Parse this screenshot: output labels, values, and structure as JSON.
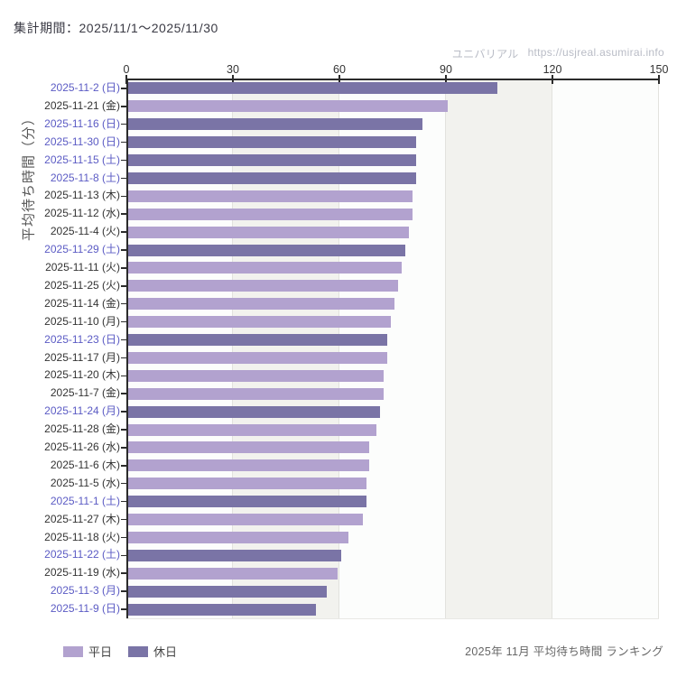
{
  "header": {
    "period_label": "集計期間：2025/11/1～2025/11/30"
  },
  "watermark": {
    "site_name": "ユニバリアル",
    "site_url": "https://usjreal.asumirai.info"
  },
  "footer": {
    "caption": "2025年 11月 平均待ち時間 ランキング"
  },
  "legend": {
    "items": [
      {
        "label": "平日",
        "type": "weekday"
      },
      {
        "label": "休日",
        "type": "holiday"
      }
    ]
  },
  "chart_data": {
    "type": "bar",
    "orientation": "horizontal",
    "title": "2025年 11月 平均待ち時間 ランキング",
    "ylabel": "平均待ち時間（分）",
    "xlabel": "",
    "xlim": [
      0,
      150
    ],
    "x_ticks": [
      0,
      30,
      60,
      90,
      120,
      150
    ],
    "grid": true,
    "legend_position": "bottom-left",
    "categories": [
      "2025-11-2 (日)",
      "2025-11-21 (金)",
      "2025-11-16 (日)",
      "2025-11-30 (日)",
      "2025-11-15 (土)",
      "2025-11-8 (土)",
      "2025-11-13 (木)",
      "2025-11-12 (水)",
      "2025-11-4 (火)",
      "2025-11-29 (土)",
      "2025-11-11 (火)",
      "2025-11-25 (火)",
      "2025-11-14 (金)",
      "2025-11-10 (月)",
      "2025-11-23 (日)",
      "2025-11-17 (月)",
      "2025-11-20 (木)",
      "2025-11-7 (金)",
      "2025-11-24 (月)",
      "2025-11-28 (金)",
      "2025-11-26 (水)",
      "2025-11-6 (木)",
      "2025-11-5 (水)",
      "2025-11-1 (土)",
      "2025-11-27 (木)",
      "2025-11-18 (火)",
      "2025-11-22 (土)",
      "2025-11-19 (水)",
      "2025-11-3 (月)",
      "2025-11-9 (日)"
    ],
    "values": [
      104,
      90,
      83,
      81,
      81,
      81,
      80,
      80,
      79,
      78,
      77,
      76,
      75,
      74,
      73,
      73,
      72,
      72,
      71,
      70,
      68,
      68,
      67,
      67,
      66,
      62,
      60,
      59,
      56,
      53
    ],
    "day_types": [
      "holiday",
      "weekday",
      "holiday",
      "holiday",
      "holiday",
      "holiday",
      "weekday",
      "weekday",
      "weekday",
      "holiday",
      "weekday",
      "weekday",
      "weekday",
      "weekday",
      "holiday",
      "weekday",
      "weekday",
      "weekday",
      "holiday",
      "weekday",
      "weekday",
      "weekday",
      "weekday",
      "holiday",
      "weekday",
      "weekday",
      "holiday",
      "weekday",
      "holiday",
      "holiday"
    ],
    "colors": {
      "weekday_bar": "#b2a2cf",
      "holiday_bar": "#7a74a6",
      "weekday_label": "#333333",
      "holiday_label": "#5b5bc4"
    }
  }
}
